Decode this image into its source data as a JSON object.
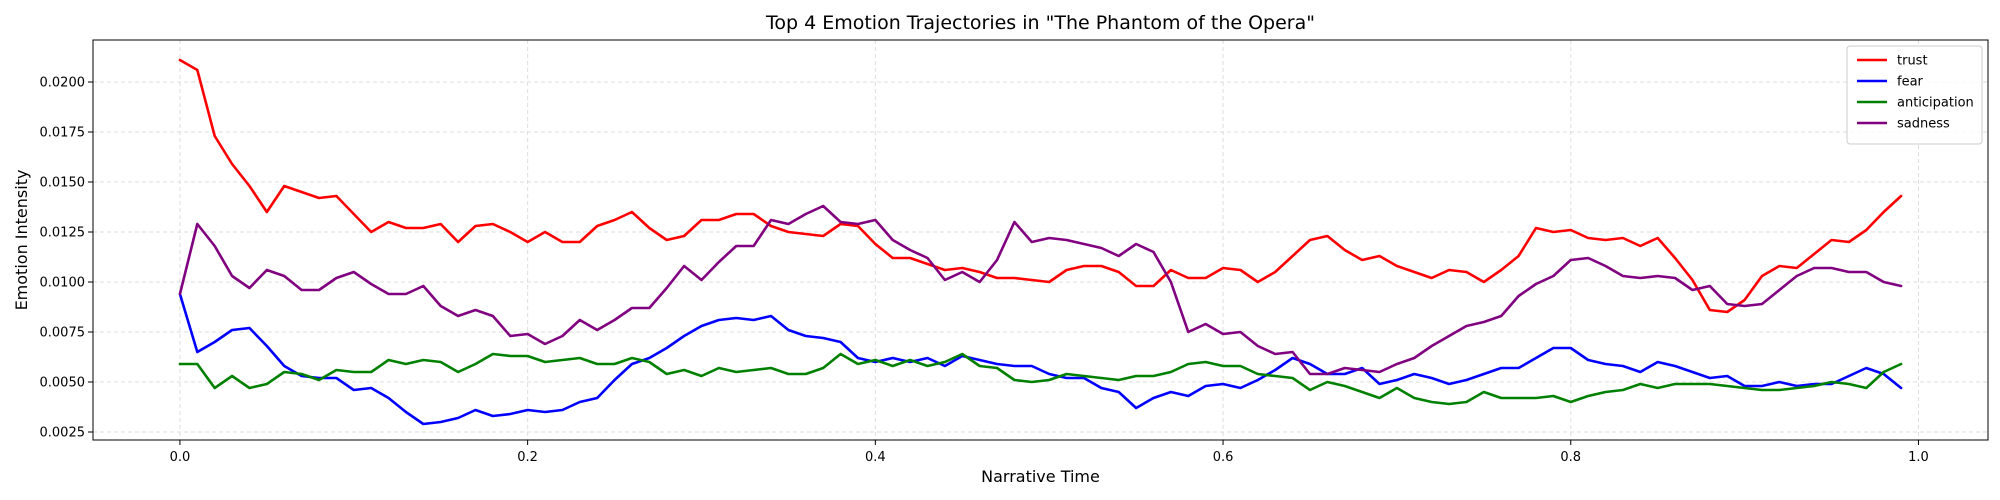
{
  "chart_data": {
    "type": "line",
    "title": "Top 4 Emotion Trajectories in \"The Phantom of the Opera\"",
    "xlabel": "Narrative Time",
    "ylabel": "Emotion Intensity",
    "xlim": [
      -0.05,
      1.04
    ],
    "ylim": [
      0.0021,
      0.0221
    ],
    "xticks": [
      0.0,
      0.2,
      0.4,
      0.6,
      0.8,
      1.0
    ],
    "xtick_labels": [
      "0.0",
      "0.2",
      "0.4",
      "0.6",
      "0.8",
      "1.0"
    ],
    "yticks": [
      0.0025,
      0.005,
      0.0075,
      0.01,
      0.0125,
      0.015,
      0.0175,
      0.02
    ],
    "ytick_labels": [
      "0.0025",
      "0.0050",
      "0.0075",
      "0.0100",
      "0.0125",
      "0.0150",
      "0.0175",
      "0.0200"
    ],
    "grid": true,
    "legend_position": "top-right",
    "x_start": 0.0,
    "x_step": 0.01,
    "series": [
      {
        "name": "trust",
        "color": "#ff0000",
        "values": [
          0.0211,
          0.0206,
          0.0173,
          0.0159,
          0.0148,
          0.0135,
          0.0148,
          0.0145,
          0.0142,
          0.0143,
          0.0134,
          0.0125,
          0.013,
          0.0127,
          0.0127,
          0.0129,
          0.012,
          0.0128,
          0.0129,
          0.0125,
          0.012,
          0.0125,
          0.012,
          0.012,
          0.0128,
          0.0131,
          0.0135,
          0.0127,
          0.0121,
          0.0123,
          0.0131,
          0.0131,
          0.0134,
          0.0134,
          0.0128,
          0.0125,
          0.0124,
          0.0123,
          0.0129,
          0.0128,
          0.0119,
          0.0112,
          0.0112,
          0.0109,
          0.0106,
          0.0107,
          0.0105,
          0.0102,
          0.0102,
          0.0101,
          0.01,
          0.0106,
          0.0108,
          0.0108,
          0.0105,
          0.0098,
          0.0098,
          0.0106,
          0.0102,
          0.0102,
          0.0107,
          0.0106,
          0.01,
          0.0105,
          0.0113,
          0.0121,
          0.0123,
          0.0116,
          0.0111,
          0.0113,
          0.0108,
          0.0105,
          0.0102,
          0.0106,
          0.0105,
          0.01,
          0.0106,
          0.0113,
          0.0127,
          0.0125,
          0.0126,
          0.0122,
          0.0121,
          0.0122,
          0.0118,
          0.0122,
          0.0112,
          0.0101,
          0.0086,
          0.0085,
          0.0091,
          0.0103,
          0.0108,
          0.0107,
          0.0114,
          0.0121,
          0.012,
          0.0126,
          0.0135,
          0.0143
        ]
      },
      {
        "name": "fear",
        "color": "#0000ff",
        "values": [
          0.0094,
          0.0065,
          0.007,
          0.0076,
          0.0077,
          0.0068,
          0.0058,
          0.0053,
          0.0052,
          0.0052,
          0.0046,
          0.0047,
          0.0042,
          0.0035,
          0.0029,
          0.003,
          0.0032,
          0.0036,
          0.0033,
          0.0034,
          0.0036,
          0.0035,
          0.0036,
          0.004,
          0.0042,
          0.0051,
          0.0059,
          0.0062,
          0.0067,
          0.0073,
          0.0078,
          0.0081,
          0.0082,
          0.0081,
          0.0083,
          0.0076,
          0.0073,
          0.0072,
          0.007,
          0.0062,
          0.006,
          0.0062,
          0.006,
          0.0062,
          0.0058,
          0.0063,
          0.0061,
          0.0059,
          0.0058,
          0.0058,
          0.0054,
          0.0052,
          0.0052,
          0.0047,
          0.0045,
          0.0037,
          0.0042,
          0.0045,
          0.0043,
          0.0048,
          0.0049,
          0.0047,
          0.0051,
          0.0056,
          0.0062,
          0.0059,
          0.0054,
          0.0054,
          0.0057,
          0.0049,
          0.0051,
          0.0054,
          0.0052,
          0.0049,
          0.0051,
          0.0054,
          0.0057,
          0.0057,
          0.0062,
          0.0067,
          0.0067,
          0.0061,
          0.0059,
          0.0058,
          0.0055,
          0.006,
          0.0058,
          0.0055,
          0.0052,
          0.0053,
          0.0048,
          0.0048,
          0.005,
          0.0048,
          0.0049,
          0.0049,
          0.0053,
          0.0057,
          0.0054,
          0.0047
        ]
      },
      {
        "name": "anticipation",
        "color": "#008000",
        "values": [
          0.0059,
          0.0059,
          0.0047,
          0.0053,
          0.0047,
          0.0049,
          0.0055,
          0.0054,
          0.0051,
          0.0056,
          0.0055,
          0.0055,
          0.0061,
          0.0059,
          0.0061,
          0.006,
          0.0055,
          0.0059,
          0.0064,
          0.0063,
          0.0063,
          0.006,
          0.0061,
          0.0062,
          0.0059,
          0.0059,
          0.0062,
          0.006,
          0.0054,
          0.0056,
          0.0053,
          0.0057,
          0.0055,
          0.0056,
          0.0057,
          0.0054,
          0.0054,
          0.0057,
          0.0064,
          0.0059,
          0.0061,
          0.0058,
          0.0061,
          0.0058,
          0.006,
          0.0064,
          0.0058,
          0.0057,
          0.0051,
          0.005,
          0.0051,
          0.0054,
          0.0053,
          0.0052,
          0.0051,
          0.0053,
          0.0053,
          0.0055,
          0.0059,
          0.006,
          0.0058,
          0.0058,
          0.0054,
          0.0053,
          0.0052,
          0.0046,
          0.005,
          0.0048,
          0.0045,
          0.0042,
          0.0047,
          0.0042,
          0.004,
          0.0039,
          0.004,
          0.0045,
          0.0042,
          0.0042,
          0.0042,
          0.0043,
          0.004,
          0.0043,
          0.0045,
          0.0046,
          0.0049,
          0.0047,
          0.0049,
          0.0049,
          0.0049,
          0.0048,
          0.0047,
          0.0046,
          0.0046,
          0.0047,
          0.0048,
          0.005,
          0.0049,
          0.0047,
          0.0055,
          0.0059
        ]
      },
      {
        "name": "sadness",
        "color": "#800080",
        "values": [
          0.0094,
          0.0129,
          0.0118,
          0.0103,
          0.0097,
          0.0106,
          0.0103,
          0.0096,
          0.0096,
          0.0102,
          0.0105,
          0.0099,
          0.0094,
          0.0094,
          0.0098,
          0.0088,
          0.0083,
          0.0086,
          0.0083,
          0.0073,
          0.0074,
          0.0069,
          0.0073,
          0.0081,
          0.0076,
          0.0081,
          0.0087,
          0.0087,
          0.0097,
          0.0108,
          0.0101,
          0.011,
          0.0118,
          0.0118,
          0.0131,
          0.0129,
          0.0134,
          0.0138,
          0.013,
          0.0129,
          0.0131,
          0.0121,
          0.0116,
          0.0112,
          0.0101,
          0.0105,
          0.01,
          0.0111,
          0.013,
          0.012,
          0.0122,
          0.0121,
          0.0119,
          0.0117,
          0.0113,
          0.0119,
          0.0115,
          0.01,
          0.0075,
          0.0079,
          0.0074,
          0.0075,
          0.0068,
          0.0064,
          0.0065,
          0.0054,
          0.0054,
          0.0057,
          0.0056,
          0.0055,
          0.0059,
          0.0062,
          0.0068,
          0.0073,
          0.0078,
          0.008,
          0.0083,
          0.0093,
          0.0099,
          0.0103,
          0.0111,
          0.0112,
          0.0108,
          0.0103,
          0.0102,
          0.0103,
          0.0102,
          0.0096,
          0.0098,
          0.0089,
          0.0088,
          0.0089,
          0.0096,
          0.0103,
          0.0107,
          0.0107,
          0.0105,
          0.0105,
          0.01,
          0.0098
        ]
      }
    ]
  }
}
